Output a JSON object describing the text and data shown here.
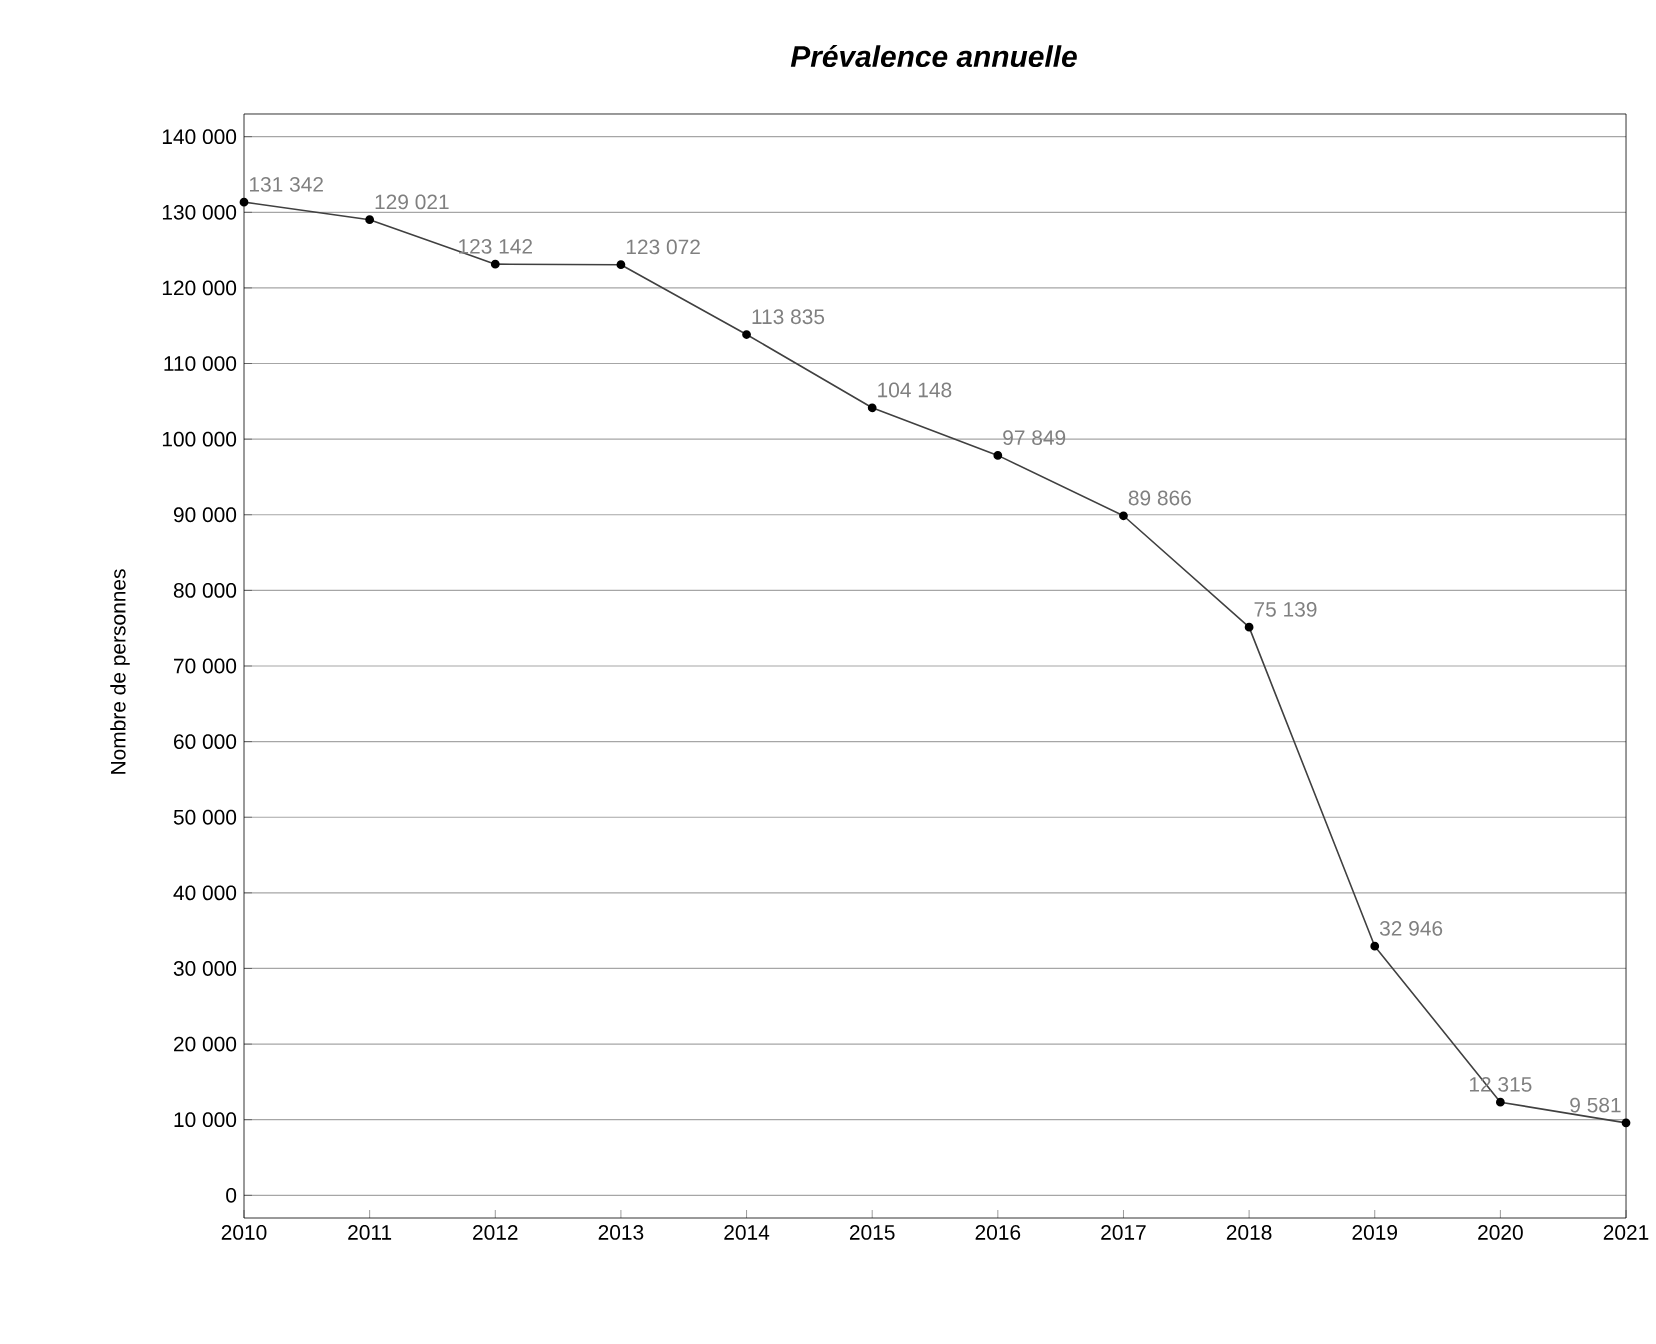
{
  "chart_data": {
    "type": "line",
    "title": "Prévalence annuelle",
    "ylabel": "Nombre de personnes",
    "x": [
      2010,
      2011,
      2012,
      2013,
      2014,
      2015,
      2016,
      2017,
      2018,
      2019,
      2020,
      2021
    ],
    "series": [
      {
        "color": "#404040",
        "values": [
          131342,
          129021,
          123142,
          123072,
          113835,
          104148,
          97849,
          89866,
          75139,
          32946,
          12315,
          9581
        ],
        "value_labels": [
          "131 342",
          "129 021",
          "123 142",
          "123 072",
          "113 835",
          "104 148",
          "97 849",
          "89 866",
          "75 139",
          "32 946",
          "12 315",
          "9 581"
        ]
      }
    ],
    "xlim": [
      2010,
      2021
    ],
    "xticks": [
      2010,
      2011,
      2012,
      2013,
      2014,
      2015,
      2016,
      2017,
      2018,
      2019,
      2020,
      2021
    ],
    "ylim": [
      -3000,
      143000
    ],
    "yticks": [
      {
        "value": 0,
        "label": "0"
      },
      {
        "value": 10000,
        "label": "10 000"
      },
      {
        "value": 20000,
        "label": "20 000"
      },
      {
        "value": 30000,
        "label": "30 000"
      },
      {
        "value": 40000,
        "label": "40 000"
      },
      {
        "value": 50000,
        "label": "50 000"
      },
      {
        "value": 60000,
        "label": "60 000"
      },
      {
        "value": 70000,
        "label": "70 000"
      },
      {
        "value": 80000,
        "label": "80 000"
      },
      {
        "value": 90000,
        "label": "90 000"
      },
      {
        "value": 100000,
        "label": "100 000"
      },
      {
        "value": 110000,
        "label": "110 000"
      },
      {
        "value": 120000,
        "label": "120 000"
      },
      {
        "value": 130000,
        "label": "130 000"
      },
      {
        "value": 140000,
        "label": "140 000"
      }
    ],
    "grid": "y",
    "marker": "circle",
    "line_style": "solid"
  }
}
